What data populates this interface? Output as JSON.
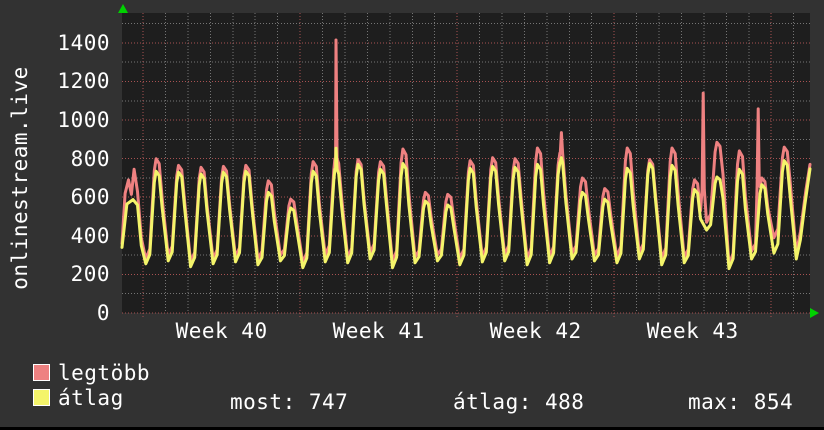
{
  "title": "onlinestream.live",
  "legend": {
    "series": [
      {
        "label": "legtöbb",
        "color": "#ee8181"
      },
      {
        "label": "átlag",
        "color": "#f4f46a"
      }
    ],
    "stats": [
      {
        "text": "most: 747"
      },
      {
        "text": "átlag: 488"
      },
      {
        "text": "max: 854"
      }
    ],
    "stats_for_series": "átlag",
    "stats_values": {
      "most": 747,
      "átlag": 488,
      "max": 854
    }
  },
  "colors": {
    "background": "#323232",
    "plot_background": "#1e1e1e",
    "grid_minor": "#757575",
    "grid_major": "#a85252",
    "arrow": "#00d200",
    "text": "#ffffff",
    "series_max": "#ee8181",
    "series_avg": "#f4f46a"
  },
  "chart_data": {
    "type": "line",
    "title": "onlinestream.live",
    "xlabel": "",
    "ylabel": "",
    "grid": true,
    "legend_position": "bottom-left",
    "plot_bg": "#1e1e1e",
    "y_axis": {
      "ticks": [
        0,
        200,
        400,
        600,
        800,
        1000,
        1200,
        1400
      ],
      "major_step": 200,
      "minor_step": 100,
      "range": [
        0,
        1555
      ]
    },
    "x_axis": {
      "unit": "days since start of Week 40",
      "range_days": [
        -0.94,
        29.73
      ],
      "week_boundaries_days": [
        0,
        7,
        14,
        21,
        28
      ],
      "minor_grid_days": 1,
      "labels": [
        "Week 40",
        "Week 41",
        "Week 42",
        "Week 43"
      ],
      "label_positions_days": [
        3.5,
        10.5,
        17.5,
        24.5
      ]
    },
    "daily_comment": "rows: [day, max_trough, max_peak, avg_trough, avg_peak] (trough=morning low, peak=evening high)",
    "daily": [
      [
        0,
        280,
        800,
        255,
        735
      ],
      [
        1,
        300,
        765,
        270,
        730
      ],
      [
        2,
        265,
        755,
        240,
        720
      ],
      [
        3,
        280,
        760,
        255,
        730
      ],
      [
        4,
        290,
        765,
        265,
        735
      ],
      [
        5,
        280,
        685,
        250,
        625
      ],
      [
        6,
        300,
        590,
        270,
        545
      ],
      [
        7,
        260,
        785,
        235,
        735
      ],
      [
        8,
        300,
        800,
        265,
        745
      ],
      [
        9,
        285,
        795,
        260,
        770
      ],
      [
        10,
        310,
        785,
        280,
        745
      ],
      [
        11,
        265,
        850,
        235,
        775
      ],
      [
        12,
        290,
        625,
        260,
        580
      ],
      [
        13,
        300,
        615,
        270,
        560
      ],
      [
        14,
        280,
        790,
        250,
        750
      ],
      [
        15,
        290,
        805,
        265,
        760
      ],
      [
        16,
        300,
        800,
        270,
        755
      ],
      [
        17,
        280,
        855,
        250,
        770
      ],
      [
        18,
        290,
        830,
        260,
        780
      ],
      [
        19,
        310,
        700,
        280,
        625
      ],
      [
        20,
        300,
        645,
        270,
        590
      ],
      [
        21,
        290,
        855,
        260,
        750
      ],
      [
        22,
        310,
        795,
        280,
        775
      ],
      [
        23,
        280,
        855,
        250,
        765
      ],
      [
        24,
        290,
        690,
        260,
        640
      ],
      [
        25,
        470,
        885,
        430,
        705
      ],
      [
        26,
        250,
        840,
        230,
        745
      ],
      [
        27,
        320,
        700,
        280,
        665
      ],
      [
        28,
        390,
        860,
        310,
        790
      ],
      [
        29,
        310,
        null,
        280,
        null
      ]
    ],
    "series": [
      {
        "name": "legtöbb",
        "key": "max",
        "color": "#ee8181",
        "head_points": [
          [
            -0.94,
            360
          ],
          [
            -0.8,
            620
          ],
          [
            -0.65,
            690
          ],
          [
            -0.52,
            615
          ],
          [
            -0.4,
            745
          ],
          [
            -0.25,
            630
          ],
          [
            -0.08,
            390
          ]
        ],
        "spikes_comment": "[day, spike_value, base_value]",
        "spikes": [
          [
            8.6,
            1415,
            800
          ],
          [
            18.65,
            935,
            830
          ],
          [
            24.97,
            1140,
            640
          ],
          [
            27.42,
            1058,
            660
          ]
        ],
        "tail_points": [
          [
            29.3,
            420
          ],
          [
            29.55,
            640
          ],
          [
            29.73,
            770
          ]
        ]
      },
      {
        "name": "átlag",
        "key": "avg",
        "color": "#f4f46a",
        "head_points": [
          [
            -0.94,
            340
          ],
          [
            -0.72,
            565
          ],
          [
            -0.45,
            588
          ],
          [
            -0.25,
            560
          ],
          [
            -0.08,
            350
          ]
        ],
        "spikes": [
          [
            8.6,
            854,
            745
          ],
          [
            18.65,
            805,
            780
          ]
        ],
        "tail_points": [
          [
            29.3,
            380
          ],
          [
            29.5,
            560
          ],
          [
            29.73,
            747
          ]
        ]
      }
    ]
  }
}
